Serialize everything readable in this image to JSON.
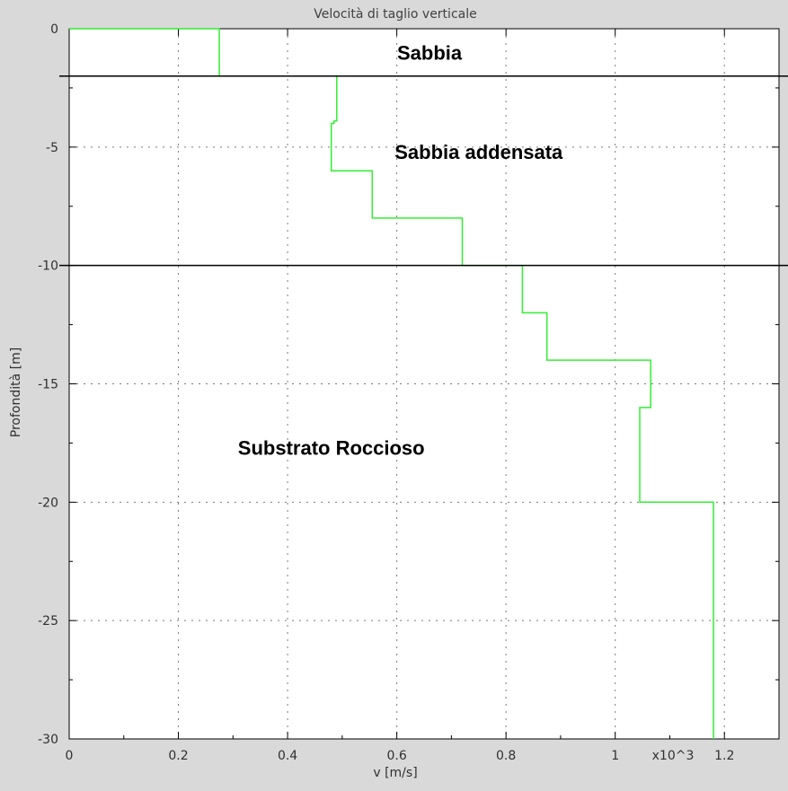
{
  "chart_data": {
    "type": "line",
    "title": "Velocità di taglio verticale",
    "xlabel": "v [m/s]",
    "ylabel": "Profondità [m]",
    "x_multiplier_label": "x10^3",
    "xlim": [
      0,
      1.3
    ],
    "ylim": [
      -30,
      0
    ],
    "grid": true,
    "x_ticks": [
      0,
      0.2,
      0.4,
      0.6,
      0.8,
      1,
      1.2
    ],
    "x_tick_labels": [
      "0",
      "0.2",
      "0.4",
      "0.6",
      "0.8",
      "1",
      "1.2"
    ],
    "y_ticks": [
      0,
      -5,
      -10,
      -15,
      -20,
      -25,
      -30
    ],
    "y_tick_labels": [
      "0",
      "-5",
      "-10",
      "-15",
      "-20",
      "-25",
      "-30"
    ],
    "series": [
      {
        "color": "#33ee33",
        "x": [
          0,
          0.275,
          0.275,
          0.49,
          0.49,
          0.485,
          0.485,
          0.48,
          0.48,
          0.555,
          0.555,
          0.72,
          0.72,
          0.83,
          0.83,
          0.875,
          0.875,
          1.065,
          1.065,
          1.045,
          1.045,
          1.18,
          1.18
        ],
        "y": [
          0,
          0,
          -2,
          -2,
          -3.9,
          -3.9,
          -4,
          -4,
          -6,
          -6,
          -8,
          -8,
          -10,
          -10,
          -12,
          -12,
          -14,
          -14,
          -16,
          -16,
          -20,
          -20,
          -30
        ]
      }
    ],
    "boundaries": [
      -2,
      -10
    ],
    "annotations": [
      {
        "text": "Sabbia",
        "x": 0.66,
        "y": -1
      },
      {
        "text": "Sabbia addensata",
        "x": 0.75,
        "y": -5.2
      },
      {
        "text": "Substrato Roccioso",
        "x": 0.48,
        "y": -17.7
      }
    ]
  }
}
